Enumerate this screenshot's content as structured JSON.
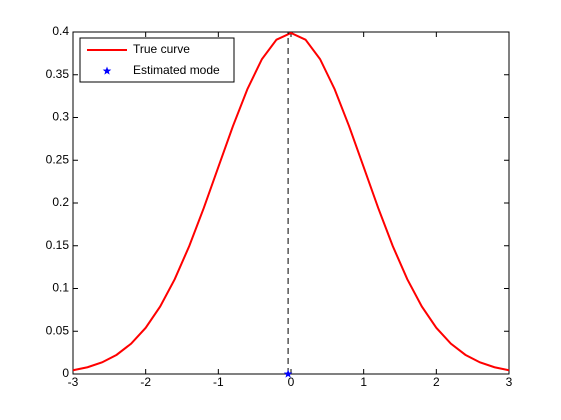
{
  "chart_data": {
    "type": "line",
    "xlim": [
      -3,
      3
    ],
    "xticks": [
      -3,
      -2,
      -1,
      0,
      1,
      2,
      3
    ],
    "ylim": [
      0,
      0.4
    ],
    "yticks": [
      0,
      0.05,
      0.1,
      0.15,
      0.2,
      0.25,
      0.3,
      0.35,
      0.4
    ],
    "grid": false,
    "legend": "upper-left",
    "series": [
      {
        "name": "True curve",
        "color": "#ff0000",
        "x": [
          -3,
          -2.8,
          -2.6,
          -2.4,
          -2.2,
          -2,
          -1.8,
          -1.6,
          -1.4,
          -1.2,
          -1,
          -0.8,
          -0.6,
          -0.4,
          -0.2,
          0,
          0.2,
          0.4,
          0.6,
          0.8,
          1,
          1.2,
          1.4,
          1.6,
          1.8,
          2,
          2.2,
          2.4,
          2.6,
          2.8,
          3
        ],
        "values": [
          0.0044,
          0.0079,
          0.0136,
          0.0224,
          0.0355,
          0.054,
          0.079,
          0.1109,
          0.1497,
          0.1942,
          0.242,
          0.2897,
          0.3332,
          0.3683,
          0.391,
          0.3989,
          0.391,
          0.3683,
          0.3332,
          0.2897,
          0.242,
          0.1942,
          0.1497,
          0.1109,
          0.079,
          0.054,
          0.0355,
          0.0224,
          0.0136,
          0.0079,
          0.0044
        ]
      },
      {
        "name": "Estimated mode",
        "color": "#0000ff",
        "marker": "star",
        "x": [
          -0.04
        ],
        "values": [
          0
        ]
      }
    ]
  }
}
